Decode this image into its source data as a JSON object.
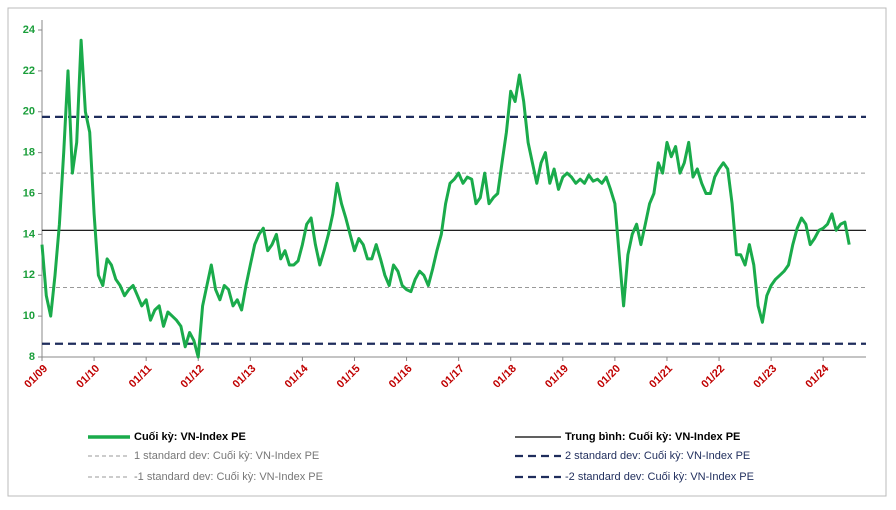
{
  "chart_data": {
    "type": "line",
    "x": [
      "01/09",
      "02/09",
      "03/09",
      "04/09",
      "05/09",
      "06/09",
      "07/09",
      "08/09",
      "09/09",
      "10/09",
      "11/09",
      "12/09",
      "01/10",
      "02/10",
      "03/10",
      "04/10",
      "05/10",
      "06/10",
      "07/10",
      "08/10",
      "09/10",
      "10/10",
      "11/10",
      "12/10",
      "01/11",
      "02/11",
      "03/11",
      "04/11",
      "05/11",
      "06/11",
      "07/11",
      "08/11",
      "09/11",
      "10/11",
      "11/11",
      "12/11",
      "01/12",
      "02/12",
      "03/12",
      "04/12",
      "05/12",
      "06/12",
      "07/12",
      "08/12",
      "09/12",
      "10/12",
      "11/12",
      "12/12",
      "01/13",
      "02/13",
      "03/13",
      "04/13",
      "05/13",
      "06/13",
      "07/13",
      "08/13",
      "09/13",
      "10/13",
      "11/13",
      "12/13",
      "01/14",
      "02/14",
      "03/14",
      "04/14",
      "05/14",
      "06/14",
      "07/14",
      "08/14",
      "09/14",
      "10/14",
      "11/14",
      "12/14",
      "01/15",
      "02/15",
      "03/15",
      "04/15",
      "05/15",
      "06/15",
      "07/15",
      "08/15",
      "09/15",
      "10/15",
      "11/15",
      "12/15",
      "01/16",
      "02/16",
      "03/16",
      "04/16",
      "05/16",
      "06/16",
      "07/16",
      "08/16",
      "09/16",
      "10/16",
      "11/16",
      "12/16",
      "01/17",
      "02/17",
      "03/17",
      "04/17",
      "05/17",
      "06/17",
      "07/17",
      "08/17",
      "09/17",
      "10/17",
      "11/17",
      "12/17",
      "01/18",
      "02/18",
      "03/18",
      "04/18",
      "05/18",
      "06/18",
      "07/18",
      "08/18",
      "09/18",
      "10/18",
      "11/18",
      "12/18",
      "01/19",
      "02/19",
      "03/19",
      "04/19",
      "05/19",
      "06/19",
      "07/19",
      "08/19",
      "09/19",
      "10/19",
      "11/19",
      "12/19",
      "01/20",
      "02/20",
      "03/20",
      "04/20",
      "05/20",
      "06/20",
      "07/20",
      "08/20",
      "09/20",
      "10/20",
      "11/20",
      "12/20",
      "01/21",
      "02/21",
      "03/21",
      "04/21",
      "05/21",
      "06/21",
      "07/21",
      "08/21",
      "09/21",
      "10/21",
      "11/21",
      "12/21",
      "01/22",
      "02/22",
      "03/22",
      "04/22",
      "05/22",
      "06/22",
      "07/22",
      "08/22",
      "09/22",
      "10/22",
      "11/22",
      "12/22",
      "01/23",
      "02/23",
      "03/23",
      "04/23",
      "05/23",
      "06/23",
      "07/23",
      "08/23",
      "09/23",
      "10/23",
      "11/23",
      "12/23",
      "01/24",
      "02/24",
      "03/24",
      "04/24",
      "05/24",
      "06/24",
      "07/24"
    ],
    "series": [
      {
        "name": "Cuối kỳ: VN-Index PE",
        "color": "#1aab4b",
        "values": [
          13.5,
          11,
          10,
          12,
          14.5,
          18,
          22,
          17,
          18.5,
          23.5,
          20,
          19,
          15,
          12,
          11.5,
          12.8,
          12.5,
          11.8,
          11.5,
          11,
          11.3,
          11.5,
          11,
          10.5,
          10.8,
          9.8,
          10.3,
          10.5,
          9.5,
          10.2,
          10,
          9.8,
          9.5,
          8.5,
          9.2,
          8.8,
          8,
          10.5,
          11.5,
          12.5,
          11.3,
          10.8,
          11.5,
          11.3,
          10.5,
          10.8,
          10.3,
          11.5,
          12.5,
          13.5,
          14,
          14.3,
          13.2,
          13.5,
          14,
          12.8,
          13.2,
          12.5,
          12.5,
          12.7,
          13.5,
          14.5,
          14.8,
          13.5,
          12.5,
          13.2,
          14,
          15,
          16.5,
          15.5,
          14.8,
          14,
          13.2,
          13.8,
          13.5,
          12.8,
          12.8,
          13.5,
          12.8,
          12,
          11.5,
          12.5,
          12.2,
          11.5,
          11.3,
          11.2,
          11.8,
          12.2,
          12,
          11.5,
          12.3,
          13.2,
          14,
          15.5,
          16.5,
          16.7,
          17,
          16.5,
          16.8,
          16.7,
          15.5,
          15.8,
          17,
          15.5,
          15.8,
          16,
          17.5,
          19,
          21,
          20.5,
          21.8,
          20.5,
          18.5,
          17.5,
          16.5,
          17.5,
          18,
          16.5,
          17.2,
          16.2,
          16.8,
          17,
          16.8,
          16.5,
          16.7,
          16.5,
          16.9,
          16.6,
          16.7,
          16.5,
          16.8,
          16.2,
          15.5,
          13,
          10.5,
          13,
          14,
          14.5,
          13.5,
          14.5,
          15.5,
          16,
          17.5,
          17,
          18.5,
          17.8,
          18.3,
          17,
          17.5,
          18.5,
          16.8,
          17.2,
          16.5,
          16,
          16,
          16.8,
          17.2,
          17.5,
          17.2,
          15.5,
          13,
          13,
          12.5,
          13.5,
          12.5,
          10.5,
          9.7,
          11,
          11.5,
          11.8,
          12,
          12.2,
          12.5,
          13.5,
          14.3,
          14.8,
          14.5,
          13.5,
          13.8,
          14.2,
          14.3,
          14.5,
          15,
          14.2,
          14.5,
          14.6,
          13.5
        ]
      }
    ],
    "reference_lines": [
      {
        "name": "Trung bình: Cuối kỳ: VN-Index PE",
        "value": 14.2,
        "color": "#000000",
        "style": "solid"
      },
      {
        "name": "1 standard dev: Cuối kỳ: VN-Index PE",
        "value": 17.0,
        "color": "#999999",
        "style": "dashed"
      },
      {
        "name": "-1 standard dev: Cuối kỳ: VN-Index PE",
        "value": 11.4,
        "color": "#999999",
        "style": "dashed"
      },
      {
        "name": "2 standard dev: Cuối kỳ: VN-Index PE",
        "value": 19.75,
        "color": "#1f2d5c",
        "style": "bold-dashed"
      },
      {
        "name": "-2 standard dev: Cuối kỳ: VN-Index PE",
        "value": 8.65,
        "color": "#1f2d5c",
        "style": "bold-dashed"
      }
    ],
    "xticks": [
      "01/09",
      "01/10",
      "01/11",
      "01/12",
      "01/13",
      "01/14",
      "01/15",
      "01/16",
      "01/17",
      "01/18",
      "01/19",
      "01/20",
      "01/21",
      "01/22",
      "01/23",
      "01/24"
    ],
    "ylim": [
      8,
      24
    ],
    "yticks": [
      8,
      10,
      12,
      14,
      16,
      18,
      20,
      22,
      24
    ],
    "ytick_color": "#1a9e3a",
    "xtick_color": "#c00000"
  }
}
